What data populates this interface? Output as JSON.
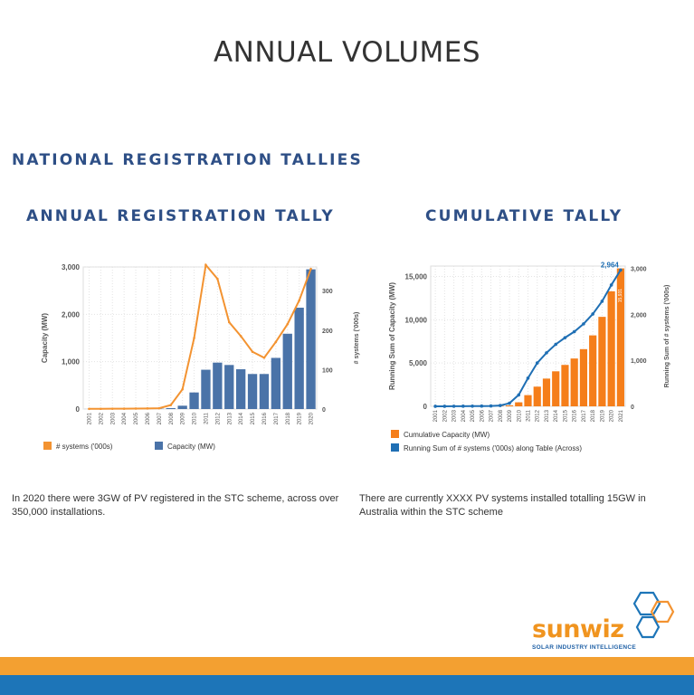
{
  "page": {
    "title": "ANNUAL VOLUMES",
    "section_title": "NATIONAL REGISTRATION TALLIES"
  },
  "colors": {
    "heading_blue": "#2e4f86",
    "line_orange": "#f39331",
    "bar_blue": "#4a73a8",
    "bar_orange": "#f57e1a",
    "line_blue": "#1f6fb4",
    "band_orange": "#f3a031",
    "band_blue": "#1d75b8"
  },
  "charts": {
    "annual": {
      "heading": "ANNUAL REGISTRATION TALLY",
      "caption": "In 2020 there were 3GW of PV registered in the STC scheme, across over 350,000 installations."
    },
    "cumulative": {
      "heading": "CUMULATIVE TALLY",
      "caption": "There are currently XXXX PV systems installed totalling 15GW in Australia within the STC scheme"
    }
  },
  "chart_data": [
    {
      "type": "bar",
      "title": "ANNUAL REGISTRATION TALLY",
      "categories": [
        "2001",
        "2002",
        "2003",
        "2004",
        "2005",
        "2006",
        "2007",
        "2008",
        "2009",
        "2010",
        "2011",
        "2012",
        "2013",
        "2014",
        "2015",
        "2016",
        "2017",
        "2018",
        "2019",
        "2020"
      ],
      "series": [
        {
          "name": "Capacity (MW)",
          "type": "bar",
          "axis": "left",
          "color": "#4a73a8",
          "values": [
            1,
            2,
            3,
            3,
            4,
            4,
            6,
            20,
            70,
            350,
            830,
            980,
            930,
            840,
            740,
            740,
            1080,
            1590,
            2140,
            2950
          ]
        },
        {
          "name": "# systems ('000s)",
          "type": "line",
          "axis": "right",
          "color": "#f39331",
          "values": [
            0.5,
            0.6,
            0.8,
            1,
            1.2,
            1.5,
            2,
            10,
            50,
            180,
            365,
            330,
            220,
            185,
            145,
            130,
            170,
            215,
            275,
            355
          ]
        }
      ],
      "ylabel": "Capacity (MW)",
      "y2label": "# systems ('000s)",
      "ylim": [
        0,
        3000
      ],
      "y2lim": [
        0,
        360
      ],
      "yticks": [
        "0",
        "1,000",
        "2,000",
        "3,000"
      ],
      "y2ticks": [
        "0",
        "100",
        "200",
        "300"
      ],
      "legend": [
        "# systems ('000s)",
        "Capacity (MW)"
      ],
      "legend_position": "bottom",
      "grid": true
    },
    {
      "type": "bar",
      "title": "CUMULATIVE TALLY",
      "categories": [
        "2001",
        "2002",
        "2003",
        "2004",
        "2005",
        "2006",
        "2007",
        "2008",
        "2009",
        "2010",
        "2011",
        "2012",
        "2013",
        "2014",
        "2015",
        "2016",
        "2017",
        "2018",
        "2019",
        "2020",
        "2021"
      ],
      "series": [
        {
          "name": "Cumulative Capacity (MW)",
          "type": "bar",
          "axis": "left",
          "color": "#f57e1a",
          "values": [
            1,
            3,
            6,
            9,
            13,
            17,
            23,
            43,
            113,
            463,
            1293,
            2273,
            3203,
            4043,
            4783,
            5523,
            6603,
            8193,
            10333,
            13283,
            15931
          ]
        },
        {
          "name": "Running Sum of # systems ('000s) along Table (Across)",
          "type": "line",
          "axis": "right",
          "color": "#1f6fb4",
          "values": [
            1,
            1,
            2,
            3,
            4,
            6,
            8,
            18,
            68,
            248,
            613,
            943,
            1163,
            1348,
            1493,
            1623,
            1793,
            2008,
            2283,
            2638,
            2964
          ]
        }
      ],
      "ylabel": "Running Sum of Capacity (MW)",
      "y2label": "Running Sum of # systems ('000s)",
      "ylim": [
        0,
        16200
      ],
      "y2lim": [
        0,
        3050
      ],
      "yticks": [
        "0",
        "5,000",
        "10,000",
        "15,000"
      ],
      "y2ticks": [
        "0",
        "1,000",
        "2,000",
        "3,000"
      ],
      "annotations": [
        "2,964",
        "15,931"
      ],
      "legend": [
        "Cumulative Capacity (MW)",
        "Running Sum of # systems ('000s) along Table (Across)"
      ],
      "legend_position": "bottom",
      "grid": true
    }
  ],
  "logo": {
    "name": "sunwiz",
    "tagline": "SOLAR INDUSTRY INTELLIGENCE"
  }
}
